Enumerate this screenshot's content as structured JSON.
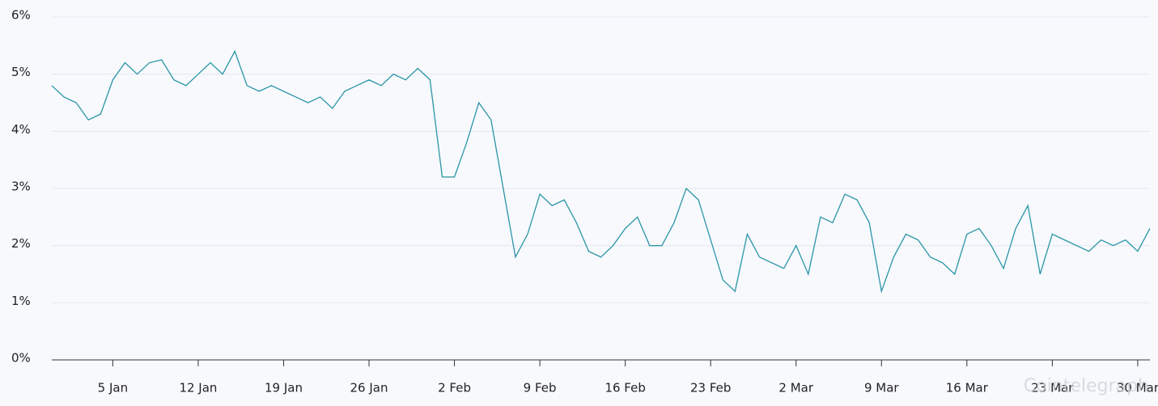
{
  "chart_data": {
    "type": "line",
    "categories": [
      null,
      null,
      null,
      null,
      null,
      "5 Jan",
      null,
      null,
      null,
      null,
      null,
      null,
      "12 Jan",
      null,
      null,
      null,
      null,
      null,
      null,
      "19 Jan",
      null,
      null,
      null,
      null,
      null,
      null,
      "26 Jan",
      null,
      null,
      null,
      null,
      null,
      null,
      "2 Feb",
      null,
      null,
      null,
      null,
      null,
      null,
      "9 Feb",
      null,
      null,
      null,
      null,
      null,
      null,
      "16 Feb",
      null,
      null,
      null,
      null,
      null,
      null,
      "23 Feb",
      null,
      null,
      null,
      null,
      null,
      null,
      "2 Mar",
      null,
      null,
      null,
      null,
      null,
      null,
      "9 Mar",
      null,
      null,
      null,
      null,
      null,
      null,
      "16 Mar",
      null,
      null,
      null,
      null,
      null,
      null,
      "23 Mar",
      null,
      null,
      null,
      null,
      null,
      null,
      "30 Mar",
      null
    ],
    "series": [
      {
        "color": "#2a95a8",
        "values": [
          4.8,
          4.6,
          4.5,
          4.2,
          4.3,
          4.9,
          5.2,
          5.0,
          5.2,
          5.25,
          4.9,
          4.8,
          5.0,
          5.2,
          5.0,
          5.4,
          4.8,
          4.7,
          4.8,
          4.7,
          4.6,
          4.5,
          4.6,
          4.4,
          4.7,
          4.8,
          4.9,
          4.8,
          5.0,
          4.9,
          5.1,
          4.9,
          3.2,
          3.2,
          3.8,
          4.5,
          4.2,
          3.0,
          1.8,
          2.2,
          2.9,
          2.7,
          2.8,
          2.4,
          1.9,
          1.8,
          2.0,
          2.3,
          2.5,
          2.0,
          2.0,
          2.4,
          3.0,
          2.8,
          2.1,
          1.4,
          1.2,
          2.2,
          1.8,
          1.7,
          1.6,
          2.0,
          1.5,
          2.5,
          2.4,
          2.9,
          2.8,
          2.4,
          1.2,
          1.8,
          2.2,
          2.1,
          1.8,
          1.7,
          1.5,
          2.2,
          2.3,
          2.0,
          1.6,
          2.3,
          2.7,
          1.5,
          2.2,
          2.1,
          2.0,
          1.9,
          2.1,
          2.0,
          2.1,
          1.9,
          2.3
        ]
      }
    ],
    "ylim": [
      0,
      6
    ],
    "yticks": [
      {
        "value": 0,
        "label": "0%"
      },
      {
        "value": 1,
        "label": "1%"
      },
      {
        "value": 2,
        "label": "2%"
      },
      {
        "value": 3,
        "label": "3%"
      },
      {
        "value": 4,
        "label": "4%"
      },
      {
        "value": 5,
        "label": "5%"
      },
      {
        "value": 6,
        "label": "6%"
      }
    ],
    "grid": true,
    "watermark": "Cointelegraph"
  }
}
